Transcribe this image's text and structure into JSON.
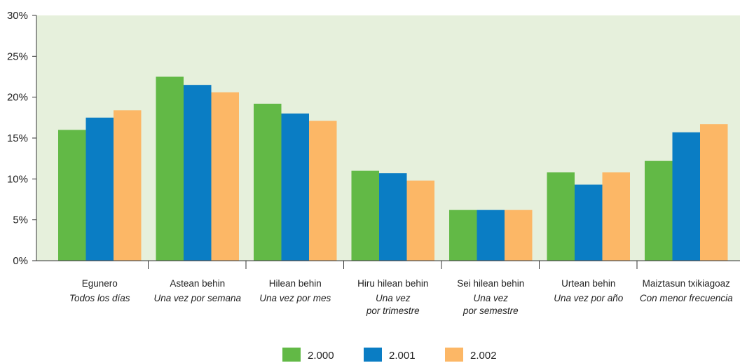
{
  "chart_data": {
    "type": "bar",
    "ylim": [
      0,
      30
    ],
    "y_ticks": [
      "0%",
      "5%",
      "10%",
      "15%",
      "20%",
      "25%",
      "30%"
    ],
    "grid": false,
    "legend_position": "bottom-center",
    "categories": [
      {
        "label": "Egunero",
        "sublabel": [
          "Todos los días"
        ]
      },
      {
        "label": "Astean behin",
        "sublabel": [
          "Una vez por semana"
        ]
      },
      {
        "label": "Hilean behin",
        "sublabel": [
          "Una vez por mes"
        ]
      },
      {
        "label": "Hiru hilean behin",
        "sublabel": [
          "Una vez",
          "por trimestre"
        ]
      },
      {
        "label": "Sei hilean behin",
        "sublabel": [
          "Una vez",
          "por semestre"
        ]
      },
      {
        "label": "Urtean behin",
        "sublabel": [
          "Una vez por año"
        ]
      },
      {
        "label": "Maiztasun txikiagoaz",
        "sublabel": [
          "Con menor frecuencia"
        ]
      }
    ],
    "series": [
      {
        "name": "2.000",
        "color": "#62b946",
        "values": [
          16.0,
          22.5,
          19.2,
          11.0,
          6.2,
          10.8,
          12.2
        ]
      },
      {
        "name": "2.001",
        "color": "#0a7dc4",
        "values": [
          17.5,
          21.5,
          18.0,
          10.7,
          6.2,
          9.3,
          15.7
        ]
      },
      {
        "name": "2.002",
        "color": "#fcb766",
        "values": [
          18.4,
          20.6,
          17.1,
          9.8,
          6.2,
          10.8,
          16.7
        ]
      }
    ],
    "plot_background": "#e6f0dc",
    "axis_color": "#333333"
  }
}
